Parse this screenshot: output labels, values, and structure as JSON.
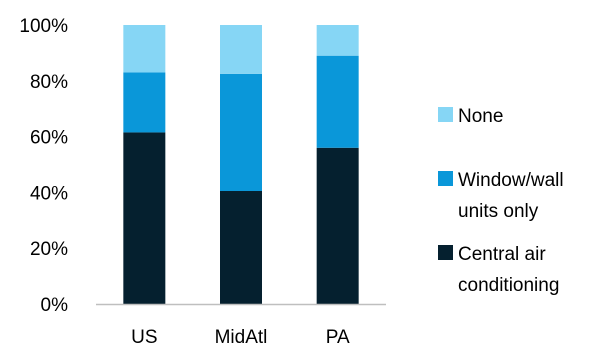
{
  "chart_data": {
    "type": "bar",
    "stacked": true,
    "categories": [
      "US",
      "MidAtl",
      "PA"
    ],
    "series": [
      {
        "name": "Central air conditioning",
        "values": [
          61.5,
          40.5,
          56
        ],
        "color": "#05202f"
      },
      {
        "name": "Window/wall units only",
        "values": [
          21.5,
          42,
          33
        ],
        "color": "#0a97d9"
      },
      {
        "name": "None",
        "values": [
          17,
          17.5,
          11
        ],
        "color": "#86d6f5"
      }
    ],
    "yticks": [
      "0%",
      "20%",
      "40%",
      "60%",
      "80%",
      "100%"
    ],
    "ylim": [
      0,
      100
    ],
    "grid": false,
    "legend_position": "right",
    "legend": [
      {
        "lines": [
          "None"
        ],
        "color": "#86d6f5"
      },
      {
        "lines": [
          "Window/wall",
          "units only"
        ],
        "color": "#0a97d9"
      },
      {
        "lines": [
          "Central air",
          "conditioning"
        ],
        "color": "#05202f"
      }
    ]
  }
}
